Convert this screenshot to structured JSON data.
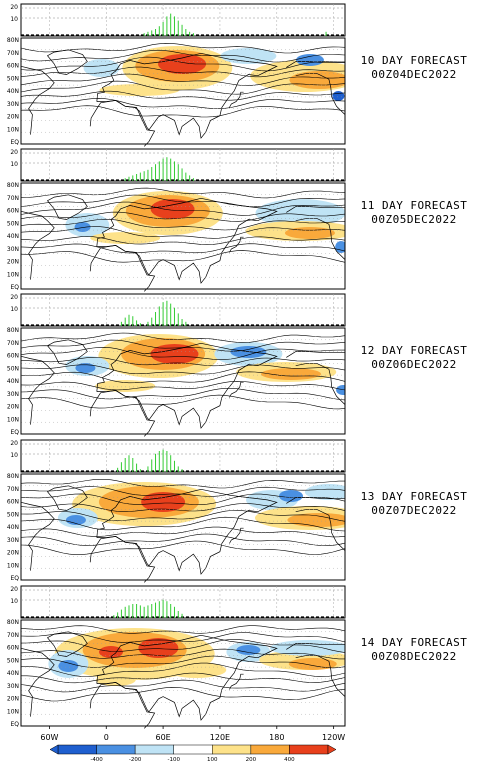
{
  "colors": {
    "bar_green": "#33cc33",
    "neg3": "#1f5fcf",
    "neg2": "#4a90e2",
    "neg1": "#bfe3f5",
    "pos1": "#fde28a",
    "pos2": "#f9a93b",
    "pos3": "#e8401c"
  },
  "map": {
    "lat_labels": [
      "80N",
      "70N",
      "60N",
      "50N",
      "40N",
      "30N",
      "20N",
      "10N",
      "EQ"
    ],
    "lon_labels": [
      "60W",
      "0",
      "60E",
      "120E",
      "180",
      "120W"
    ],
    "histogram_ticks": [
      "20",
      "10"
    ]
  },
  "colorbar": {
    "labels": [
      "-400",
      "-200",
      "-100",
      "100",
      "200",
      "400"
    ]
  },
  "panels": [
    {
      "forecast": "10 DAY FORECAST",
      "date": "00Z04DEC2022",
      "bars": [
        {
          "lon": 40,
          "h": 2
        },
        {
          "lon": 44,
          "h": 3
        },
        {
          "lon": 48,
          "h": 4
        },
        {
          "lon": 52,
          "h": 5
        },
        {
          "lon": 56,
          "h": 7
        },
        {
          "lon": 60,
          "h": 10
        },
        {
          "lon": 64,
          "h": 14
        },
        {
          "lon": 68,
          "h": 16
        },
        {
          "lon": 72,
          "h": 14
        },
        {
          "lon": 76,
          "h": 11
        },
        {
          "lon": 80,
          "h": 8
        },
        {
          "lon": 84,
          "h": 5
        },
        {
          "lon": 88,
          "h": 3
        },
        {
          "lon": 92,
          "h": 2
        },
        {
          "lon": 232,
          "h": 3
        }
      ]
    },
    {
      "forecast": "11 DAY FORECAST",
      "date": "00Z05DEC2022",
      "bars": [
        {
          "lon": 20,
          "h": 2
        },
        {
          "lon": 24,
          "h": 3
        },
        {
          "lon": 28,
          "h": 4
        },
        {
          "lon": 32,
          "h": 5
        },
        {
          "lon": 36,
          "h": 6
        },
        {
          "lon": 40,
          "h": 7
        },
        {
          "lon": 44,
          "h": 8
        },
        {
          "lon": 48,
          "h": 10
        },
        {
          "lon": 52,
          "h": 12
        },
        {
          "lon": 56,
          "h": 14
        },
        {
          "lon": 60,
          "h": 16
        },
        {
          "lon": 64,
          "h": 17
        },
        {
          "lon": 68,
          "h": 16
        },
        {
          "lon": 72,
          "h": 14
        },
        {
          "lon": 76,
          "h": 12
        },
        {
          "lon": 80,
          "h": 9
        },
        {
          "lon": 84,
          "h": 6
        },
        {
          "lon": 88,
          "h": 4
        },
        {
          "lon": 92,
          "h": 2
        }
      ]
    },
    {
      "forecast": "12 DAY FORECAST",
      "date": "00Z06DEC2022",
      "bars": [
        {
          "lon": 16,
          "h": 3
        },
        {
          "lon": 20,
          "h": 6
        },
        {
          "lon": 24,
          "h": 8
        },
        {
          "lon": 28,
          "h": 7
        },
        {
          "lon": 32,
          "h": 4
        },
        {
          "lon": 36,
          "h": 2
        },
        {
          "lon": 44,
          "h": 3
        },
        {
          "lon": 48,
          "h": 6
        },
        {
          "lon": 52,
          "h": 10
        },
        {
          "lon": 56,
          "h": 14
        },
        {
          "lon": 60,
          "h": 17
        },
        {
          "lon": 64,
          "h": 18
        },
        {
          "lon": 68,
          "h": 16
        },
        {
          "lon": 72,
          "h": 13
        },
        {
          "lon": 76,
          "h": 9
        },
        {
          "lon": 80,
          "h": 5
        },
        {
          "lon": 84,
          "h": 3
        }
      ]
    },
    {
      "forecast": "13 DAY FORECAST",
      "date": "00Z07DEC2022",
      "bars": [
        {
          "lon": 12,
          "h": 3
        },
        {
          "lon": 16,
          "h": 7
        },
        {
          "lon": 20,
          "h": 10
        },
        {
          "lon": 24,
          "h": 12
        },
        {
          "lon": 28,
          "h": 10
        },
        {
          "lon": 32,
          "h": 6
        },
        {
          "lon": 36,
          "h": 2
        },
        {
          "lon": 44,
          "h": 4
        },
        {
          "lon": 48,
          "h": 9
        },
        {
          "lon": 52,
          "h": 13
        },
        {
          "lon": 56,
          "h": 15
        },
        {
          "lon": 60,
          "h": 16
        },
        {
          "lon": 64,
          "h": 15
        },
        {
          "lon": 68,
          "h": 12
        },
        {
          "lon": 72,
          "h": 8
        },
        {
          "lon": 76,
          "h": 4
        },
        {
          "lon": 80,
          "h": 2
        }
      ]
    },
    {
      "forecast": "14 DAY FORECAST",
      "date": "00Z08DEC2022",
      "bars": [
        {
          "lon": 8,
          "h": 2
        },
        {
          "lon": 12,
          "h": 4
        },
        {
          "lon": 16,
          "h": 6
        },
        {
          "lon": 20,
          "h": 8
        },
        {
          "lon": 24,
          "h": 9
        },
        {
          "lon": 28,
          "h": 10
        },
        {
          "lon": 32,
          "h": 10
        },
        {
          "lon": 36,
          "h": 9
        },
        {
          "lon": 40,
          "h": 8
        },
        {
          "lon": 44,
          "h": 9
        },
        {
          "lon": 48,
          "h": 10
        },
        {
          "lon": 52,
          "h": 11
        },
        {
          "lon": 56,
          "h": 12
        },
        {
          "lon": 60,
          "h": 13
        },
        {
          "lon": 64,
          "h": 12
        },
        {
          "lon": 68,
          "h": 10
        },
        {
          "lon": 72,
          "h": 8
        },
        {
          "lon": 76,
          "h": 5
        },
        {
          "lon": 80,
          "h": 3
        }
      ]
    }
  ]
}
